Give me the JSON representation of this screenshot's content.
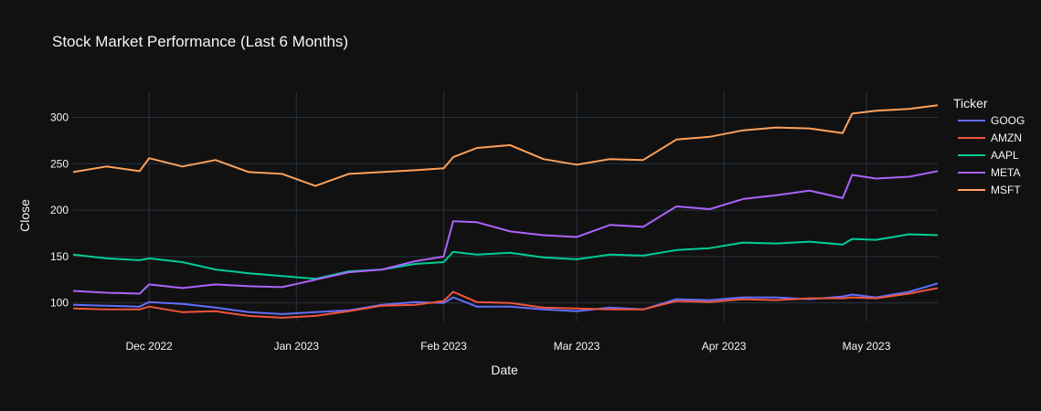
{
  "chart_data": {
    "type": "line",
    "title": "Stock Market Performance (Last 6 Months)",
    "xlabel": "Date",
    "ylabel": "Close",
    "legend_title": "Ticker",
    "legend_position": "right",
    "grid": true,
    "x_range": [
      "2022-11-15",
      "2023-05-16"
    ],
    "ylim": [
      80,
      328
    ],
    "x_ticks": [
      {
        "date": "2022-12-01",
        "label": "Dec 2022"
      },
      {
        "date": "2023-01-01",
        "label": "Jan 2023"
      },
      {
        "date": "2023-02-01",
        "label": "Feb 2023"
      },
      {
        "date": "2023-03-01",
        "label": "Mar 2023"
      },
      {
        "date": "2023-04-01",
        "label": "Apr 2023"
      },
      {
        "date": "2023-05-01",
        "label": "May 2023"
      }
    ],
    "y_ticks": [
      100,
      150,
      200,
      250,
      300
    ],
    "x": [
      "2022-11-15",
      "2022-11-22",
      "2022-11-29",
      "2022-12-01",
      "2022-12-08",
      "2022-12-15",
      "2022-12-22",
      "2022-12-29",
      "2023-01-05",
      "2023-01-12",
      "2023-01-19",
      "2023-01-26",
      "2023-02-01",
      "2023-02-03",
      "2023-02-08",
      "2023-02-15",
      "2023-02-22",
      "2023-03-01",
      "2023-03-08",
      "2023-03-15",
      "2023-03-22",
      "2023-03-29",
      "2023-04-05",
      "2023-04-12",
      "2023-04-19",
      "2023-04-26",
      "2023-04-28",
      "2023-05-03",
      "2023-05-10",
      "2023-05-16"
    ],
    "series": [
      {
        "name": "GOOG",
        "color": "#636efa",
        "values": [
          98,
          97,
          96,
          101,
          99,
          95,
          90,
          88,
          90,
          92,
          98,
          101,
          100,
          106,
          96,
          96,
          93,
          91,
          95,
          93,
          104,
          103,
          106,
          106,
          104,
          107,
          109,
          106,
          112,
          121
        ]
      },
      {
        "name": "AMZN",
        "color": "#ef553b",
        "values": [
          94,
          93,
          93,
          96,
          90,
          91,
          86,
          84,
          86,
          91,
          97,
          98,
          102,
          112,
          101,
          100,
          95,
          94,
          93,
          93,
          102,
          101,
          104,
          103,
          105,
          105,
          106,
          105,
          110,
          116
        ]
      },
      {
        "name": "AAPL",
        "color": "#00cc96",
        "values": [
          152,
          148,
          146,
          148,
          144,
          136,
          132,
          129,
          126,
          134,
          136,
          142,
          144,
          155,
          152,
          154,
          149,
          147,
          152,
          151,
          157,
          159,
          165,
          164,
          166,
          163,
          169,
          168,
          174,
          173
        ]
      },
      {
        "name": "META",
        "color": "#ab63fa",
        "values": [
          113,
          111,
          110,
          120,
          116,
          120,
          118,
          117,
          125,
          133,
          136,
          145,
          150,
          188,
          187,
          177,
          173,
          171,
          184,
          182,
          204,
          201,
          212,
          216,
          221,
          213,
          238,
          234,
          236,
          242
        ]
      },
      {
        "name": "MSFT",
        "color": "#ffa15a",
        "values": [
          241,
          247,
          242,
          256,
          247,
          254,
          241,
          239,
          226,
          239,
          241,
          243,
          245,
          257,
          267,
          270,
          255,
          249,
          255,
          254,
          276,
          279,
          286,
          289,
          288,
          283,
          304,
          307,
          309,
          313
        ]
      }
    ]
  }
}
